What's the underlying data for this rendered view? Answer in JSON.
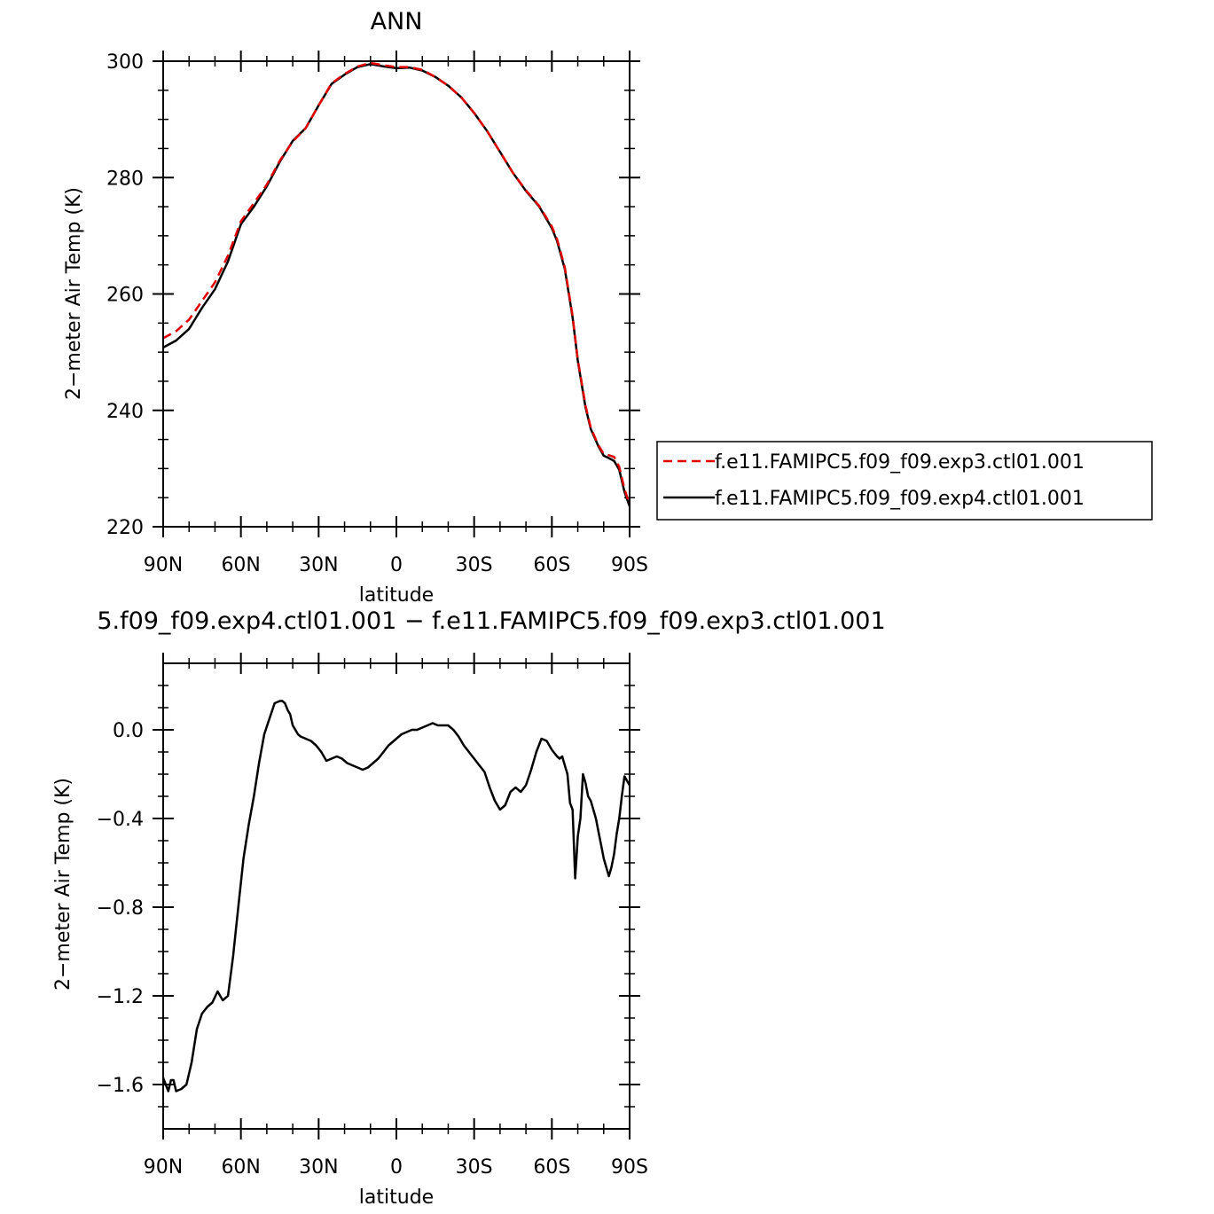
{
  "chart_data": [
    {
      "type": "line",
      "title": "ANN",
      "xlabel": "latitude",
      "ylabel": "2−meter Air Temp (K)",
      "x_ticks": [
        {
          "value": 90,
          "label": "90N"
        },
        {
          "value": 60,
          "label": "60N"
        },
        {
          "value": 30,
          "label": "30N"
        },
        {
          "value": 0,
          "label": "0"
        },
        {
          "value": -30,
          "label": "30S"
        },
        {
          "value": -60,
          "label": "60S"
        },
        {
          "value": -90,
          "label": "90S"
        }
      ],
      "y_ticks": [
        {
          "value": 220,
          "label": "220"
        },
        {
          "value": 240,
          "label": "240"
        },
        {
          "value": 260,
          "label": "260"
        },
        {
          "value": 280,
          "label": "280"
        },
        {
          "value": 300,
          "label": "300"
        }
      ],
      "xlim": [
        90,
        -90
      ],
      "ylim": [
        220,
        300
      ],
      "grid": false,
      "legend_position": "outside-right",
      "series": [
        {
          "name": "f.e11.FAMIPC5.f09_f09.exp3.ctl01.001",
          "color": "#e00000",
          "dash": "dashed",
          "x": [
            90,
            85,
            80,
            75,
            70,
            65,
            60,
            55,
            50,
            45,
            40,
            35,
            30,
            25,
            20,
            15,
            10,
            5,
            0,
            -5,
            -10,
            -15,
            -20,
            -25,
            -30,
            -35,
            -40,
            -45,
            -50,
            -55,
            -60,
            -62,
            -65,
            -68,
            -70,
            -73,
            -75,
            -78,
            -80,
            -82,
            -84,
            -86,
            -88,
            -90
          ],
          "y": [
            252.4,
            253.6,
            255.6,
            258.8,
            262.0,
            266.6,
            272.5,
            275.6,
            278.8,
            282.9,
            286.2,
            288.5,
            292.4,
            296.2,
            297.8,
            299.1,
            299.7,
            299.3,
            299.0,
            299.0,
            298.5,
            297.3,
            295.8,
            293.8,
            291.1,
            288.0,
            284.4,
            280.8,
            277.8,
            275.2,
            271.6,
            269.4,
            264.6,
            256.2,
            248.7,
            240.8,
            237.0,
            234.0,
            232.5,
            232.3,
            232.0,
            230.3,
            226.5,
            223.8
          ]
        },
        {
          "name": "f.e11.FAMIPC5.f09_f09.exp4.ctl01.001",
          "color": "#000000",
          "dash": "solid",
          "x": [
            90,
            85,
            80,
            75,
            70,
            65,
            60,
            55,
            50,
            45,
            40,
            35,
            30,
            25,
            20,
            15,
            10,
            5,
            0,
            -5,
            -10,
            -15,
            -20,
            -25,
            -30,
            -35,
            -40,
            -45,
            -50,
            -55,
            -60,
            -62,
            -65,
            -68,
            -70,
            -73,
            -75,
            -78,
            -80,
            -82,
            -84,
            -86,
            -88,
            -90
          ],
          "y": [
            250.8,
            252.0,
            254.0,
            257.6,
            260.8,
            265.6,
            272.0,
            275.0,
            278.5,
            282.7,
            286.3,
            288.5,
            292.4,
            296.1,
            297.7,
            299.0,
            299.5,
            299.1,
            298.8,
            298.9,
            298.4,
            297.3,
            295.8,
            293.8,
            291.1,
            288.0,
            284.4,
            280.8,
            277.7,
            275.1,
            271.3,
            269.1,
            264.3,
            256.0,
            248.5,
            240.5,
            236.8,
            233.8,
            232.2,
            231.8,
            231.3,
            229.8,
            226.0,
            223.5
          ]
        }
      ]
    },
    {
      "type": "line",
      "title": "5.f09_f09.exp4.ctl01.001  −  f.e11.FAMIPC5.f09_f09.exp3.ctl01.001",
      "xlabel": "latitude",
      "ylabel": "2−meter Air Temp (K)",
      "x_ticks": [
        {
          "value": 90,
          "label": "90N"
        },
        {
          "value": 60,
          "label": "60N"
        },
        {
          "value": 30,
          "label": "30N"
        },
        {
          "value": 0,
          "label": "0"
        },
        {
          "value": -30,
          "label": "30S"
        },
        {
          "value": -60,
          "label": "60S"
        },
        {
          "value": -90,
          "label": "90S"
        }
      ],
      "y_ticks": [
        {
          "value": -1.6,
          "label": "−1.6"
        },
        {
          "value": -1.2,
          "label": "−1.2"
        },
        {
          "value": -0.8,
          "label": "−0.8"
        },
        {
          "value": -0.4,
          "label": "−0.4"
        },
        {
          "value": 0.0,
          "label": "0.0"
        }
      ],
      "xlim": [
        90,
        -90
      ],
      "ylim": [
        -1.8,
        0.3
      ],
      "grid": false,
      "series": [
        {
          "color": "#000000",
          "dash": "solid",
          "x": [
            90,
            89,
            88,
            87,
            86,
            85,
            83,
            81,
            79,
            77,
            75,
            73,
            71,
            69,
            67,
            65,
            63,
            61,
            59,
            57,
            55,
            53,
            51,
            49,
            47,
            45,
            44,
            43,
            42,
            41,
            40,
            38,
            37,
            35,
            33,
            31,
            29,
            27,
            25,
            23,
            21,
            19,
            17,
            15,
            13,
            11,
            9,
            7,
            5,
            3,
            1,
            0,
            -2,
            -4,
            -6,
            -8,
            -10,
            -12,
            -14,
            -16,
            -18,
            -20,
            -22,
            -24,
            -26,
            -28,
            -30,
            -32,
            -34,
            -36,
            -38,
            -40,
            -42,
            -44,
            -46,
            -48,
            -50,
            -52,
            -54,
            -56,
            -58,
            -60,
            -62,
            -63,
            -64,
            -65,
            -66,
            -67,
            -68,
            -69,
            -70,
            -71,
            -72,
            -73,
            -74,
            -75,
            -76,
            -77,
            -78,
            -79,
            -80,
            -81,
            -82,
            -83,
            -84,
            -85,
            -86,
            -87,
            -88,
            -89,
            -90
          ],
          "y": [
            -1.57,
            -1.6,
            -1.63,
            -1.58,
            -1.58,
            -1.63,
            -1.62,
            -1.6,
            -1.5,
            -1.35,
            -1.28,
            -1.25,
            -1.23,
            -1.18,
            -1.22,
            -1.2,
            -1.02,
            -0.8,
            -0.58,
            -0.43,
            -0.3,
            -0.15,
            -0.02,
            0.05,
            0.12,
            0.13,
            0.13,
            0.12,
            0.09,
            0.07,
            0.02,
            -0.02,
            -0.03,
            -0.04,
            -0.05,
            -0.07,
            -0.1,
            -0.14,
            -0.13,
            -0.12,
            -0.13,
            -0.15,
            -0.16,
            -0.17,
            -0.18,
            -0.17,
            -0.15,
            -0.13,
            -0.1,
            -0.07,
            -0.05,
            -0.04,
            -0.02,
            -0.01,
            0.0,
            0.0,
            0.01,
            0.02,
            0.03,
            0.02,
            0.02,
            0.02,
            0.0,
            -0.03,
            -0.07,
            -0.1,
            -0.13,
            -0.16,
            -0.19,
            -0.26,
            -0.32,
            -0.36,
            -0.34,
            -0.28,
            -0.26,
            -0.28,
            -0.25,
            -0.18,
            -0.1,
            -0.04,
            -0.05,
            -0.09,
            -0.12,
            -0.13,
            -0.12,
            -0.16,
            -0.2,
            -0.33,
            -0.36,
            -0.67,
            -0.48,
            -0.4,
            -0.2,
            -0.24,
            -0.3,
            -0.32,
            -0.36,
            -0.4,
            -0.46,
            -0.52,
            -0.58,
            -0.62,
            -0.66,
            -0.62,
            -0.56,
            -0.47,
            -0.4,
            -0.3,
            -0.21,
            -0.23,
            -0.25
          ]
        }
      ]
    }
  ]
}
